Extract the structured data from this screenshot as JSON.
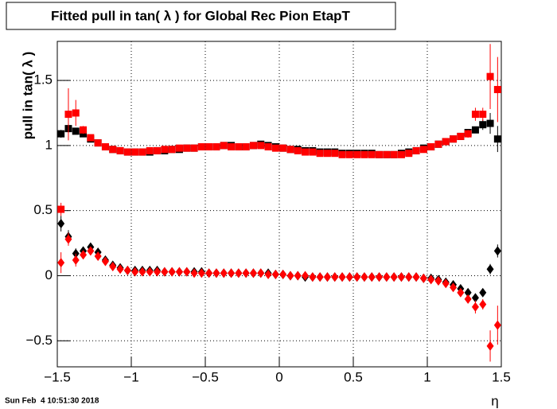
{
  "chart_data": {
    "type": "scatter",
    "title": "Fitted pull in tan( λ ) for Global Rec Pion EtapT",
    "y_label": "pull in tan( λ )",
    "x_label": "η",
    "timestamp": "Sun Feb  4 10:51:30 2018",
    "x": [
      -1.475,
      -1.425,
      -1.375,
      -1.325,
      -1.275,
      -1.225,
      -1.175,
      -1.125,
      -1.075,
      -1.025,
      -0.975,
      -0.925,
      -0.875,
      -0.825,
      -0.775,
      -0.725,
      -0.675,
      -0.625,
      -0.575,
      -0.525,
      -0.475,
      -0.425,
      -0.375,
      -0.325,
      -0.275,
      -0.225,
      -0.175,
      -0.125,
      -0.075,
      -0.025,
      0.025,
      0.075,
      0.125,
      0.175,
      0.225,
      0.275,
      0.325,
      0.375,
      0.425,
      0.475,
      0.525,
      0.575,
      0.625,
      0.675,
      0.725,
      0.775,
      0.825,
      0.875,
      0.925,
      0.975,
      1.025,
      1.075,
      1.125,
      1.175,
      1.225,
      1.275,
      1.325,
      1.375,
      1.425,
      1.475
    ],
    "series": [
      {
        "color": "#000000",
        "marker": "square",
        "values": [
          1.09,
          1.13,
          1.11,
          1.09,
          1.05,
          1.02,
          0.99,
          0.97,
          0.96,
          0.95,
          0.95,
          0.95,
          0.95,
          0.96,
          0.96,
          0.97,
          0.97,
          0.98,
          0.98,
          0.99,
          0.99,
          0.99,
          1.0,
          1.0,
          0.99,
          0.99,
          1.0,
          1.01,
          1.0,
          0.99,
          0.98,
          0.97,
          0.97,
          0.96,
          0.96,
          0.95,
          0.95,
          0.95,
          0.94,
          0.94,
          0.94,
          0.94,
          0.94,
          0.93,
          0.93,
          0.93,
          0.94,
          0.95,
          0.96,
          0.98,
          0.99,
          1.01,
          1.03,
          1.05,
          1.07,
          1.1,
          1.12,
          1.16,
          1.17,
          1.05
        ],
        "errors": [
          0.03,
          0.03,
          0.02,
          0.01,
          0.01,
          0.01,
          0.01,
          0.01,
          0.01,
          0.01,
          0.01,
          0.01,
          0.01,
          0.01,
          0.01,
          0.01,
          0.01,
          0.01,
          0.01,
          0.01,
          0.01,
          0.01,
          0.01,
          0.01,
          0.01,
          0.01,
          0.01,
          0.01,
          0.01,
          0.01,
          0.01,
          0.01,
          0.01,
          0.01,
          0.01,
          0.01,
          0.01,
          0.01,
          0.01,
          0.01,
          0.01,
          0.01,
          0.01,
          0.01,
          0.01,
          0.01,
          0.01,
          0.01,
          0.01,
          0.01,
          0.01,
          0.01,
          0.01,
          0.01,
          0.01,
          0.01,
          0.02,
          0.04,
          0.08,
          0.1
        ]
      },
      {
        "color": "#000000",
        "marker": "diamond",
        "values": [
          0.4,
          0.3,
          0.17,
          0.19,
          0.22,
          0.18,
          0.12,
          0.08,
          0.06,
          0.04,
          0.04,
          0.04,
          0.04,
          0.04,
          0.03,
          0.03,
          0.03,
          0.03,
          0.03,
          0.03,
          0.02,
          0.02,
          0.02,
          0.02,
          0.02,
          0.02,
          0.02,
          0.02,
          0.02,
          0.01,
          0.01,
          0.0,
          0.0,
          -0.01,
          -0.01,
          -0.01,
          -0.01,
          -0.01,
          -0.01,
          -0.01,
          -0.01,
          -0.01,
          -0.01,
          -0.01,
          -0.01,
          -0.01,
          -0.01,
          -0.01,
          -0.01,
          -0.02,
          -0.02,
          -0.03,
          -0.05,
          -0.07,
          -0.1,
          -0.13,
          -0.17,
          -0.13,
          0.05,
          0.19
        ],
        "errors": [
          0.06,
          0.05,
          0.04,
          0.01,
          0.01,
          0.01,
          0.01,
          0.01,
          0.01,
          0.01,
          0.01,
          0.01,
          0.01,
          0.01,
          0.01,
          0.01,
          0.01,
          0.01,
          0.01,
          0.01,
          0.01,
          0.01,
          0.01,
          0.01,
          0.01,
          0.01,
          0.01,
          0.01,
          0.01,
          0.01,
          0.01,
          0.01,
          0.01,
          0.01,
          0.01,
          0.01,
          0.01,
          0.01,
          0.01,
          0.01,
          0.01,
          0.01,
          0.01,
          0.01,
          0.01,
          0.01,
          0.01,
          0.01,
          0.01,
          0.01,
          0.01,
          0.01,
          0.01,
          0.01,
          0.01,
          0.01,
          0.02,
          0.02,
          0.04,
          0.05
        ]
      },
      {
        "color": "#ff0000",
        "marker": "square",
        "values": [
          0.51,
          1.24,
          1.25,
          1.12,
          1.06,
          1.02,
          0.99,
          0.97,
          0.96,
          0.95,
          0.95,
          0.95,
          0.96,
          0.96,
          0.97,
          0.97,
          0.98,
          0.98,
          0.98,
          0.99,
          0.99,
          0.99,
          1.0,
          0.99,
          0.99,
          0.99,
          1.0,
          1.0,
          0.99,
          0.98,
          0.98,
          0.97,
          0.96,
          0.95,
          0.95,
          0.94,
          0.94,
          0.94,
          0.93,
          0.93,
          0.93,
          0.93,
          0.93,
          0.93,
          0.93,
          0.93,
          0.93,
          0.94,
          0.96,
          0.97,
          0.99,
          1.01,
          1.03,
          1.05,
          1.07,
          1.09,
          1.24,
          1.24,
          1.53,
          1.43
        ],
        "errors": [
          0.05,
          0.2,
          0.1,
          0.03,
          0.01,
          0.01,
          0.01,
          0.01,
          0.01,
          0.01,
          0.01,
          0.01,
          0.01,
          0.01,
          0.01,
          0.01,
          0.01,
          0.01,
          0.01,
          0.01,
          0.01,
          0.01,
          0.01,
          0.01,
          0.01,
          0.01,
          0.01,
          0.01,
          0.01,
          0.01,
          0.01,
          0.01,
          0.01,
          0.01,
          0.01,
          0.01,
          0.01,
          0.01,
          0.01,
          0.01,
          0.01,
          0.01,
          0.01,
          0.01,
          0.01,
          0.01,
          0.01,
          0.01,
          0.01,
          0.01,
          0.01,
          0.01,
          0.01,
          0.01,
          0.01,
          0.03,
          0.05,
          0.05,
          0.25,
          0.25
        ]
      },
      {
        "color": "#ff0000",
        "marker": "diamond",
        "values": [
          0.1,
          0.28,
          0.12,
          0.16,
          0.19,
          0.15,
          0.11,
          0.07,
          0.05,
          0.04,
          0.03,
          0.03,
          0.03,
          0.03,
          0.03,
          0.03,
          0.03,
          0.03,
          0.02,
          0.02,
          0.02,
          0.02,
          0.02,
          0.02,
          0.02,
          0.02,
          0.02,
          0.02,
          0.01,
          0.01,
          0.01,
          0.0,
          0.0,
          0.0,
          -0.01,
          -0.01,
          -0.01,
          -0.01,
          -0.01,
          -0.01,
          -0.01,
          -0.01,
          -0.01,
          -0.01,
          -0.01,
          -0.01,
          -0.01,
          -0.01,
          -0.01,
          -0.02,
          -0.03,
          -0.04,
          -0.06,
          -0.09,
          -0.13,
          -0.18,
          -0.24,
          -0.22,
          -0.54,
          -0.38
        ],
        "errors": [
          0.08,
          0.05,
          0.05,
          0.01,
          0.01,
          0.01,
          0.01,
          0.01,
          0.01,
          0.01,
          0.01,
          0.01,
          0.01,
          0.01,
          0.01,
          0.01,
          0.01,
          0.01,
          0.01,
          0.01,
          0.01,
          0.01,
          0.01,
          0.01,
          0.01,
          0.01,
          0.01,
          0.01,
          0.01,
          0.01,
          0.01,
          0.01,
          0.01,
          0.01,
          0.01,
          0.01,
          0.01,
          0.01,
          0.01,
          0.01,
          0.01,
          0.01,
          0.01,
          0.01,
          0.01,
          0.01,
          0.01,
          0.01,
          0.01,
          0.01,
          0.01,
          0.01,
          0.01,
          0.01,
          0.02,
          0.02,
          0.05,
          0.04,
          0.12,
          0.15
        ]
      }
    ],
    "xlim": [
      -1.5,
      1.5
    ],
    "ylim": [
      -0.7,
      1.8
    ],
    "xticks": [
      {
        "value": -1.5,
        "label": "−1.5"
      },
      {
        "value": -1,
        "label": "−1"
      },
      {
        "value": -0.5,
        "label": "−0.5"
      },
      0,
      0.5,
      1,
      1.5
    ],
    "yticks": [
      {
        "value": -0.5,
        "label": "−0.5"
      },
      0,
      0.5,
      1,
      1.5
    ],
    "grid": true
  }
}
